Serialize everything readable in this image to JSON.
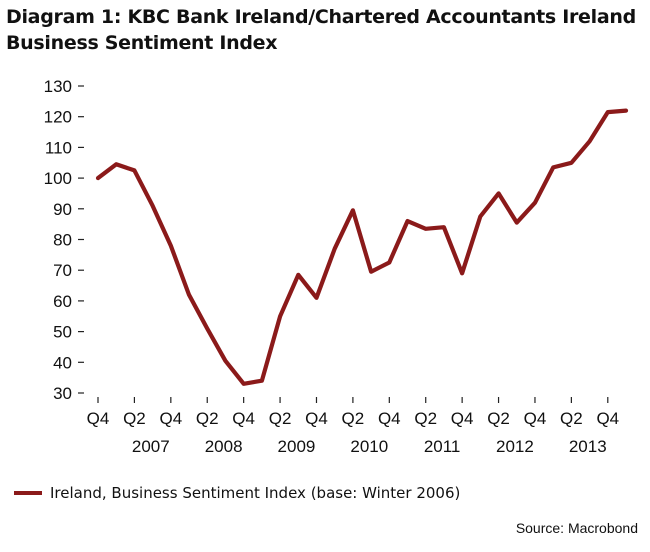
{
  "title_line1": "Diagram 1: KBC Bank Ireland/Chartered Accountants Ireland",
  "title_line2": "Business Sentiment Index",
  "source": "Source: Macrobond",
  "colors": {
    "series": "#8b1a1a"
  },
  "chart_data": {
    "type": "line",
    "title": "Diagram 1: KBC Bank Ireland/Chartered Accountants Ireland Business Sentiment Index",
    "xlabel": "",
    "ylabel": "",
    "ylim": [
      30,
      130
    ],
    "yticks": [
      30,
      40,
      50,
      60,
      70,
      80,
      90,
      100,
      110,
      120,
      130
    ],
    "grid": false,
    "legend_position": "bottom-left",
    "quarter_tick_labels": [
      "Q4",
      "Q2",
      "Q4",
      "Q2",
      "Q4",
      "Q2",
      "Q4",
      "Q2",
      "Q4",
      "Q2",
      "Q4",
      "Q2",
      "Q4",
      "Q2",
      "Q4"
    ],
    "year_labels": [
      "2007",
      "2008",
      "2009",
      "2010",
      "2011",
      "2012",
      "2013"
    ],
    "x": [
      "2006Q4",
      "2007Q1",
      "2007Q2",
      "2007Q3",
      "2007Q4",
      "2008Q1",
      "2008Q2",
      "2008Q3",
      "2008Q4",
      "2009Q1",
      "2009Q2",
      "2009Q3",
      "2009Q4",
      "2010Q1",
      "2010Q2",
      "2010Q3",
      "2010Q4",
      "2011Q1",
      "2011Q2",
      "2011Q3",
      "2011Q4",
      "2012Q1",
      "2012Q2",
      "2012Q3",
      "2012Q4",
      "2013Q1",
      "2013Q2",
      "2013Q3",
      "2013Q4",
      "2014Q1"
    ],
    "series": [
      {
        "name": "Ireland, Business Sentiment Index (base: Winter 2006)",
        "values": [
          100,
          104.5,
          102.5,
          91,
          78,
          62,
          51,
          40.5,
          33,
          34,
          55,
          68.5,
          61,
          77,
          89.5,
          69.5,
          72.5,
          86,
          83.5,
          84,
          69,
          87.5,
          95,
          85.5,
          92,
          103.5,
          105,
          112,
          121.5,
          122
        ]
      }
    ]
  }
}
